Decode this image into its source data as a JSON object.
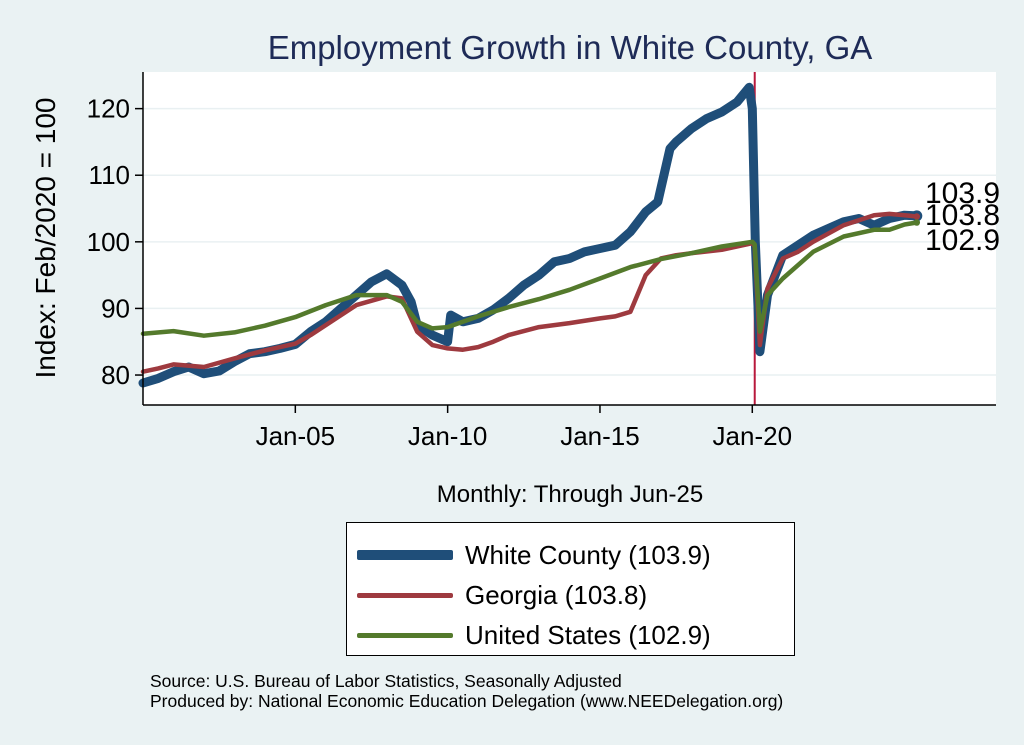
{
  "chart_data": {
    "type": "line",
    "title": "Employment Growth in White  County, GA",
    "xlabel": "Monthly: Through Jun-25",
    "ylabel": "Index: Feb/2020 = 100",
    "xlim": [
      2000.0,
      2028.0
    ],
    "ylim": [
      75.5,
      125.5
    ],
    "y_ticks": [
      80,
      90,
      100,
      110,
      120
    ],
    "x_ticks": [
      {
        "value": 2005.0,
        "label": "Jan-05"
      },
      {
        "value": 2010.0,
        "label": "Jan-10"
      },
      {
        "value": 2015.0,
        "label": "Jan-15"
      },
      {
        "value": 2020.0,
        "label": "Jan-20"
      }
    ],
    "reference_line": {
      "x": 2020.08,
      "color": "#b8193c"
    },
    "grid": "horizontal",
    "series": [
      {
        "name": "White  County",
        "color": "#1f4e79",
        "x": [
          2000.0,
          2000.5,
          2001.0,
          2001.5,
          2002.0,
          2002.5,
          2003.0,
          2003.5,
          2004.0,
          2004.5,
          2005.0,
          2005.5,
          2006.0,
          2006.5,
          2007.0,
          2007.5,
          2008.0,
          2008.5,
          2008.8,
          2009.0,
          2009.5,
          2010.0,
          2010.1,
          2010.5,
          2011.0,
          2011.5,
          2012.0,
          2012.5,
          2013.0,
          2013.5,
          2014.0,
          2014.5,
          2015.0,
          2015.5,
          2016.0,
          2016.5,
          2016.9,
          2017.1,
          2017.3,
          2017.5,
          2018.0,
          2018.5,
          2019.0,
          2019.5,
          2019.9,
          2020.0,
          2020.1,
          2020.25,
          2020.5,
          2021.0,
          2021.5,
          2022.0,
          2022.5,
          2023.0,
          2023.5,
          2024.0,
          2024.5,
          2025.0,
          2025.4
        ],
        "values": [
          78.8,
          79.5,
          80.5,
          81.2,
          80.2,
          80.6,
          82.0,
          83.2,
          83.5,
          84.0,
          84.6,
          86.5,
          88.0,
          90.0,
          92.0,
          94.0,
          95.2,
          93.5,
          91.0,
          87.5,
          86.0,
          85.0,
          89.0,
          88.0,
          88.5,
          89.8,
          91.5,
          93.5,
          95.0,
          97.0,
          97.5,
          98.5,
          99.0,
          99.5,
          101.5,
          104.5,
          106.0,
          110.0,
          114.0,
          115.0,
          117.0,
          118.5,
          119.5,
          121.0,
          123.2,
          120.0,
          100.0,
          83.5,
          92.0,
          98.0,
          99.5,
          101.0,
          102.0,
          103.0,
          103.5,
          102.5,
          103.5,
          104.0,
          103.9
        ]
      },
      {
        "name": "Georgia",
        "color": "#9e3a3f",
        "x": [
          2000.0,
          2000.5,
          2001.0,
          2002.0,
          2003.0,
          2004.0,
          2005.0,
          2005.5,
          2006.0,
          2007.0,
          2008.0,
          2008.5,
          2009.0,
          2009.5,
          2010.0,
          2010.5,
          2011.0,
          2011.5,
          2012.0,
          2013.0,
          2014.0,
          2015.0,
          2015.5,
          2016.0,
          2016.5,
          2017.0,
          2017.5,
          2018.0,
          2019.0,
          2020.0,
          2020.08,
          2020.25,
          2020.5,
          2021.0,
          2021.5,
          2022.0,
          2023.0,
          2024.0,
          2024.5,
          2025.0,
          2025.4
        ],
        "values": [
          80.5,
          81.0,
          81.6,
          81.2,
          82.5,
          83.7,
          84.7,
          86.0,
          87.5,
          90.5,
          91.8,
          91.5,
          86.5,
          84.5,
          84.0,
          83.8,
          84.2,
          85.0,
          86.0,
          87.2,
          87.8,
          88.5,
          88.8,
          89.5,
          95.0,
          97.5,
          98.0,
          98.3,
          98.8,
          99.8,
          99.3,
          84.5,
          93.0,
          97.5,
          98.5,
          100.0,
          102.5,
          104.0,
          104.2,
          104.0,
          103.8
        ]
      },
      {
        "name": "United States",
        "color": "#547a2c",
        "x": [
          2000.0,
          2001.0,
          2002.0,
          2003.0,
          2004.0,
          2005.0,
          2006.0,
          2007.0,
          2008.0,
          2008.5,
          2009.0,
          2009.5,
          2010.0,
          2011.0,
          2012.0,
          2013.0,
          2014.0,
          2015.0,
          2016.0,
          2017.0,
          2018.0,
          2019.0,
          2020.0,
          2020.08,
          2020.25,
          2020.5,
          2021.0,
          2022.0,
          2023.0,
          2024.0,
          2024.5,
          2025.0,
          2025.4
        ],
        "values": [
          86.2,
          86.6,
          85.9,
          86.4,
          87.4,
          88.7,
          90.5,
          92.0,
          92.0,
          91.0,
          88.0,
          87.0,
          87.2,
          88.8,
          90.2,
          91.4,
          92.8,
          94.5,
          96.2,
          97.4,
          98.3,
          99.3,
          100.0,
          99.6,
          86.5,
          92.0,
          94.5,
          98.5,
          100.8,
          101.8,
          101.8,
          102.6,
          102.9
        ]
      }
    ],
    "end_labels": [
      "103.9",
      "103.8",
      "102.9"
    ],
    "legend": [
      {
        "label": "White  County (103.9)",
        "color": "#1f4e79"
      },
      {
        "label": "Georgia (103.8)",
        "color": "#9e3a3f"
      },
      {
        "label": "United States (102.9)",
        "color": "#547a2c"
      }
    ],
    "legend_position": "bottom-center"
  },
  "source": {
    "line1": "Source: U.S. Bureau of Labor Statistics, Seasonally Adjusted",
    "line2": "Produced by: National Economic Education Delegation (www.NEEDelegation.org)"
  }
}
